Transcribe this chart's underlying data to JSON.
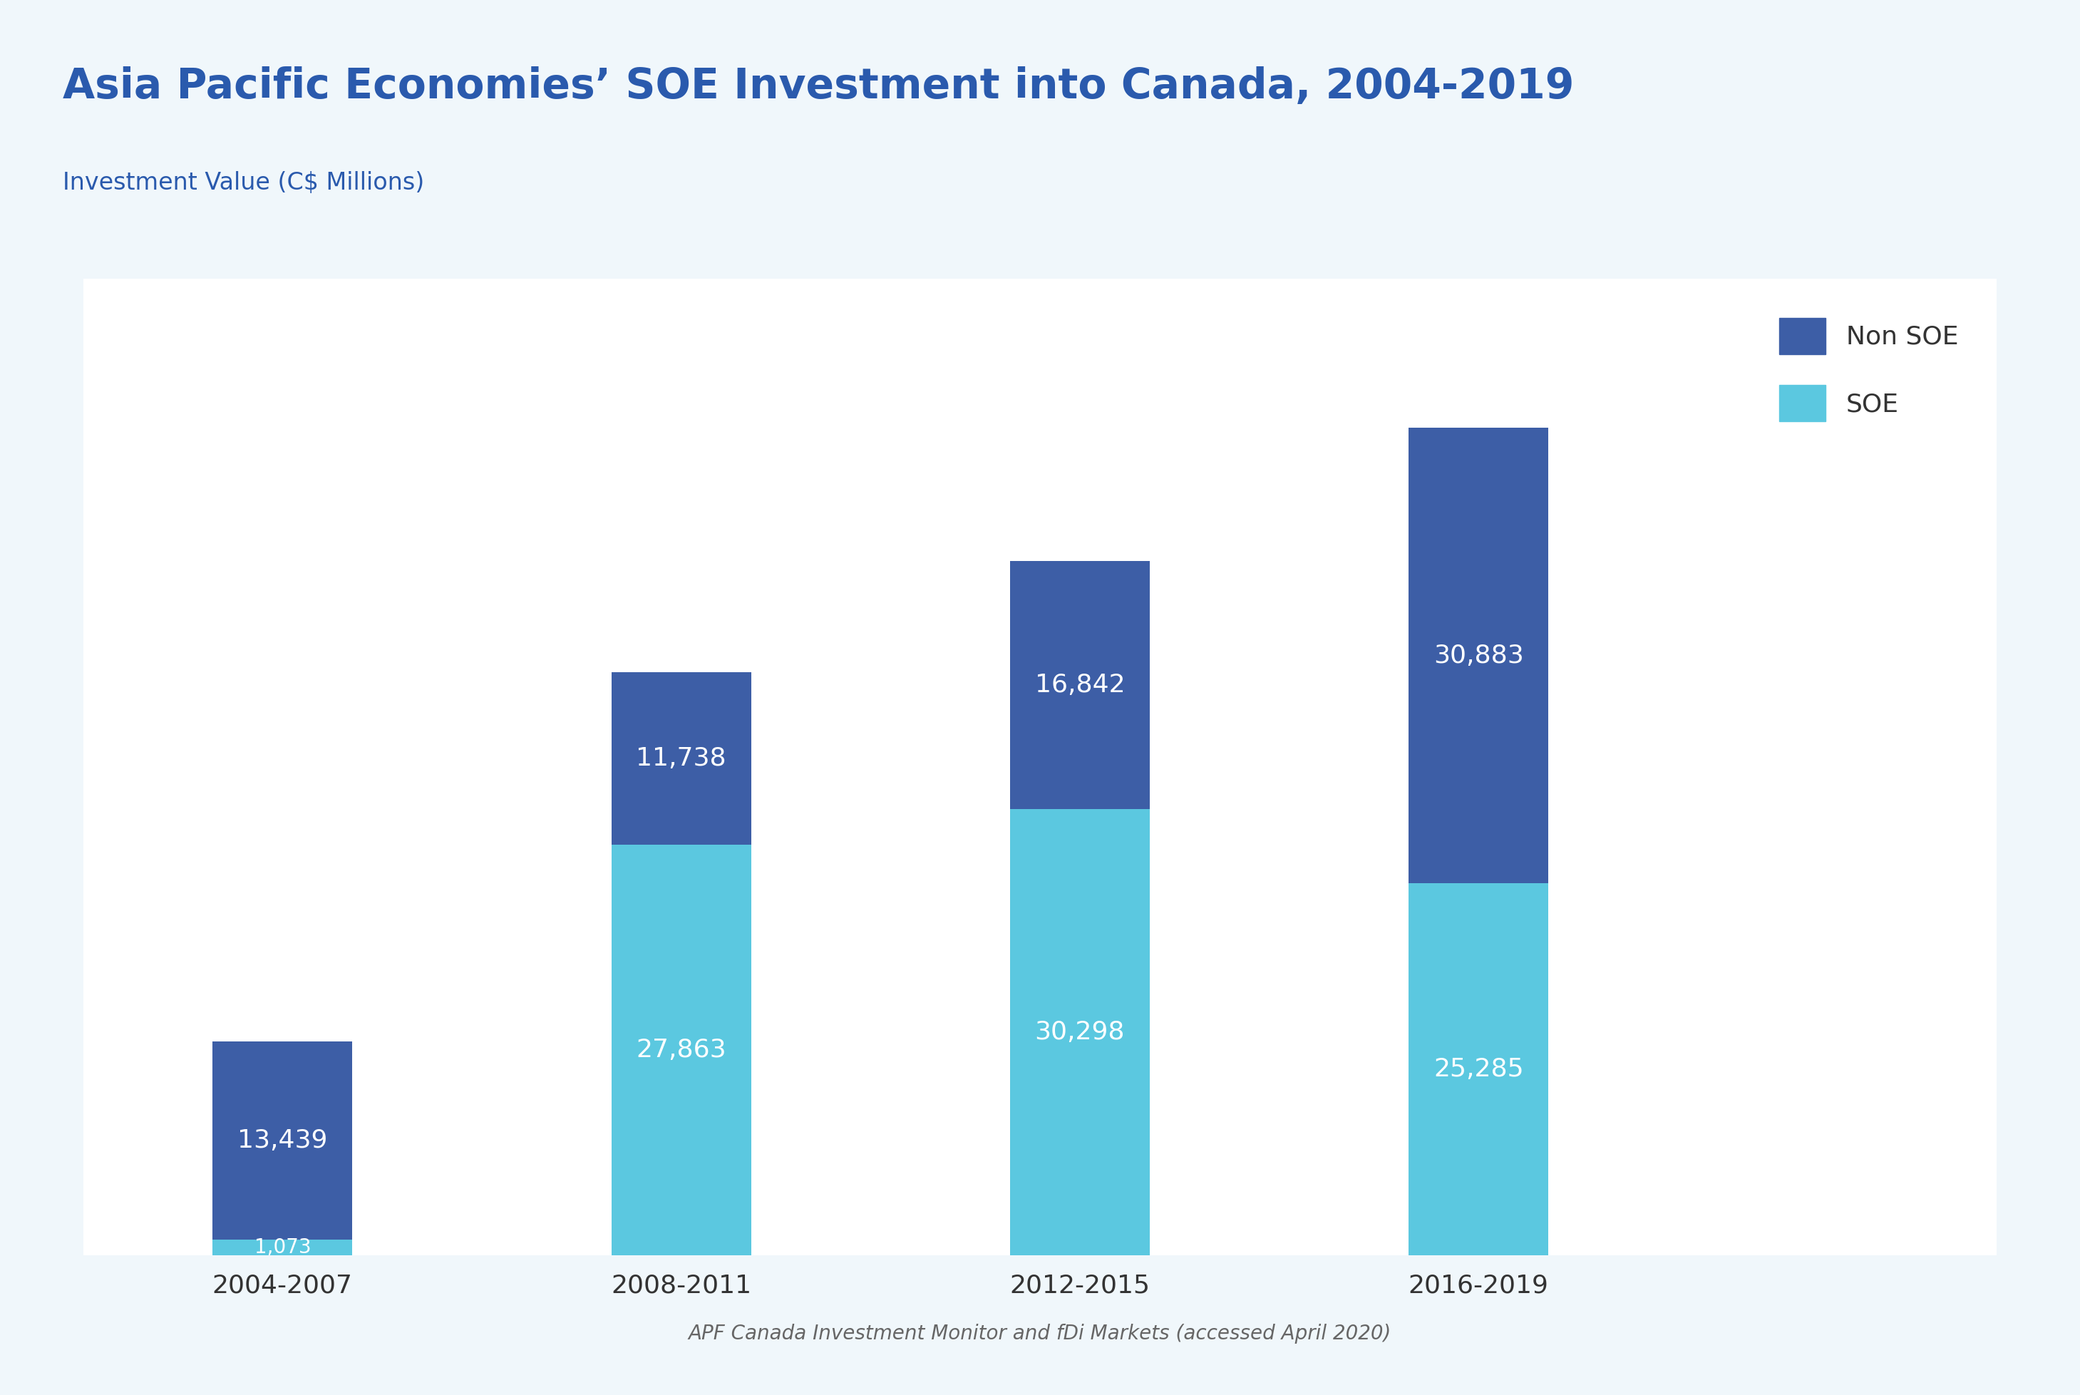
{
  "title": "Asia Pacific Economies’ SOE Investment into Canada, 2004-2019",
  "subtitle": "Investment Value (C$ Millions)",
  "categories": [
    "2004-2007",
    "2008-2011",
    "2012-2015",
    "2016-2019"
  ],
  "soe_values": [
    1073,
    27863,
    30298,
    25285
  ],
  "non_soe_values": [
    13439,
    11738,
    16842,
    30883
  ],
  "soe_color": "#5bc8e0",
  "non_soe_color": "#3d5ea6",
  "header_bg_color": "#deeef6",
  "plot_bg_color": "#ffffff",
  "fig_bg_color": "#f0f7fb",
  "title_color": "#2a5aad",
  "subtitle_color": "#2a5aad",
  "label_color": "#ffffff",
  "tick_color": "#333333",
  "footer_text": "APF Canada Investment Monitor and fDi Markets (accessed April 2020)",
  "footer_color": "#666666",
  "legend_labels": [
    "Non SOE",
    "SOE"
  ],
  "title_fontsize": 42,
  "subtitle_fontsize": 24,
  "label_fontsize": 26,
  "tick_fontsize": 26,
  "legend_fontsize": 26,
  "footer_fontsize": 20,
  "bar_width": 0.35
}
